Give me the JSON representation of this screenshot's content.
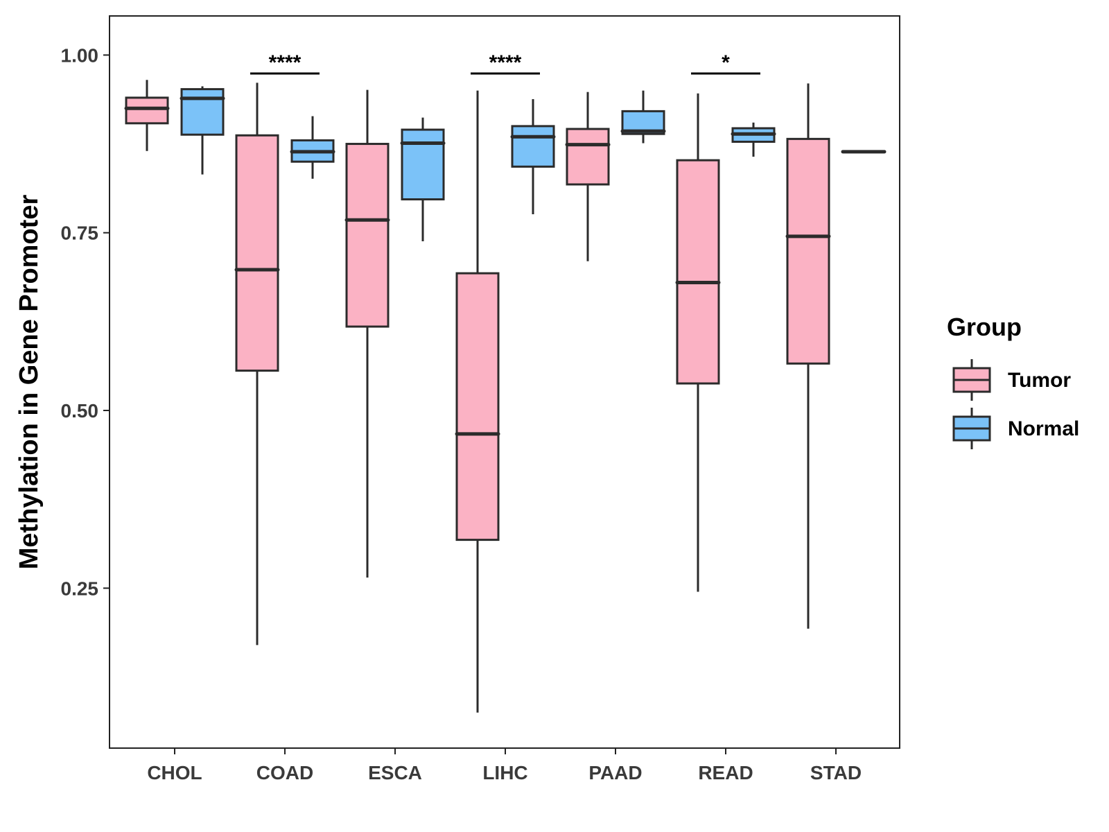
{
  "chart_data": {
    "type": "boxplot",
    "title": "",
    "xlabel": "",
    "ylabel": "Methylation in Gene Promoter",
    "ylim": [
      0.025,
      1.055
    ],
    "yticks": [
      0.25,
      0.5,
      0.75,
      1.0
    ],
    "ytick_labels": [
      "0.25",
      "0.50",
      "0.75",
      "1.00"
    ],
    "grid": false,
    "legend_position": "right",
    "categories": [
      "CHOL",
      "COAD",
      "ESCA",
      "LIHC",
      "PAAD",
      "READ",
      "STAD"
    ],
    "legend": {
      "title": "Group",
      "entries": [
        {
          "name": "Tumor",
          "color": "#FBB2C4"
        },
        {
          "name": "Normal",
          "color": "#7BC2F8"
        }
      ]
    },
    "series": [
      {
        "name": "Tumor",
        "color": "#FBB2C4",
        "boxes": [
          {
            "min": 0.865,
            "q1": 0.904,
            "median": 0.925,
            "q3": 0.94,
            "max": 0.965
          },
          {
            "min": 0.17,
            "q1": 0.556,
            "median": 0.698,
            "q3": 0.887,
            "max": 0.961
          },
          {
            "min": 0.265,
            "q1": 0.618,
            "median": 0.768,
            "q3": 0.875,
            "max": 0.951
          },
          {
            "min": 0.075,
            "q1": 0.318,
            "median": 0.467,
            "q3": 0.693,
            "max": 0.95
          },
          {
            "min": 0.71,
            "q1": 0.818,
            "median": 0.874,
            "q3": 0.896,
            "max": 0.948
          },
          {
            "min": 0.245,
            "q1": 0.538,
            "median": 0.68,
            "q3": 0.852,
            "max": 0.946
          },
          {
            "min": 0.193,
            "q1": 0.566,
            "median": 0.745,
            "q3": 0.882,
            "max": 0.96
          }
        ]
      },
      {
        "name": "Normal",
        "color": "#7BC2F8",
        "boxes": [
          {
            "min": 0.832,
            "q1": 0.888,
            "median": 0.939,
            "q3": 0.952,
            "max": 0.956
          },
          {
            "min": 0.826,
            "q1": 0.85,
            "median": 0.864,
            "q3": 0.88,
            "max": 0.914
          },
          {
            "min": 0.738,
            "q1": 0.797,
            "median": 0.876,
            "q3": 0.895,
            "max": 0.912
          },
          {
            "min": 0.776,
            "q1": 0.843,
            "median": 0.885,
            "q3": 0.9,
            "max": 0.938
          },
          {
            "min": 0.876,
            "q1": 0.889,
            "median": 0.893,
            "q3": 0.921,
            "max": 0.95
          },
          {
            "min": 0.857,
            "q1": 0.878,
            "median": 0.889,
            "q3": 0.897,
            "max": 0.905
          },
          {
            "min": 0.864,
            "q1": 0.864,
            "median": 0.864,
            "q3": 0.864,
            "max": 0.864
          }
        ]
      }
    ],
    "significance": [
      {
        "category": "COAD",
        "label": "****"
      },
      {
        "category": "LIHC",
        "label": "****"
      },
      {
        "category": "READ",
        "label": "*"
      }
    ]
  }
}
